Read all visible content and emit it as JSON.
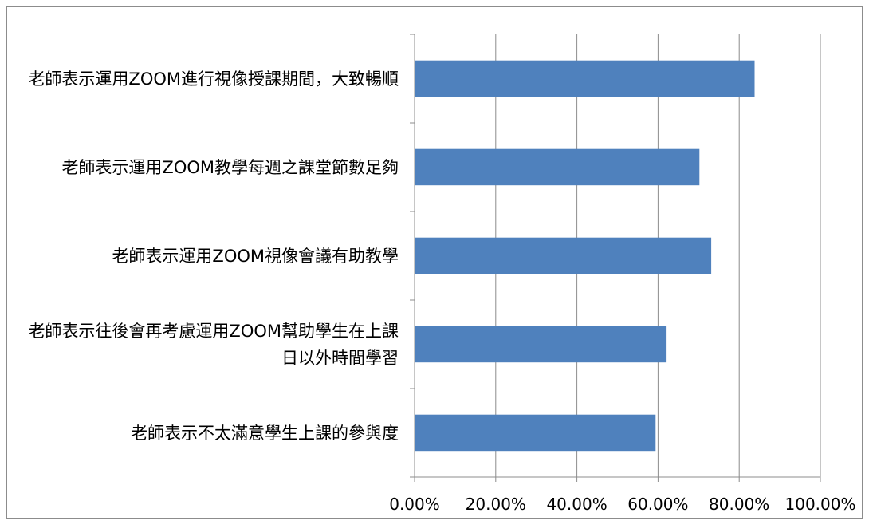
{
  "chart_data": {
    "type": "bar",
    "orientation": "horizontal",
    "categories": [
      "老師表示運用ZOOM進行視像授課期間，大致暢順",
      "老師表示運用ZOOM教學每週之課堂節數足夠",
      "老師表示運用ZOOM視像會議有助教學",
      "老師表示往後會再考慮運用ZOOM幫助學生在上課日以外時間學習",
      "老師表示不太滿意學生上課的參與度"
    ],
    "values": [
      83.8,
      70.2,
      73.1,
      62.1,
      59.4
    ],
    "unit": "%",
    "xlim": [
      0,
      100
    ],
    "x_ticks": [
      "0.00%",
      "20.00%",
      "40.00%",
      "60.00%",
      "80.00%",
      "100.00%"
    ],
    "title": "",
    "xlabel": "",
    "ylabel": "",
    "grid": "vertical major gridlines",
    "legend": "none",
    "colors": {
      "bar": "#4f81bd",
      "grid": "#8c8c8c",
      "axis": "#8c8c8c",
      "border": "#8c8c8c"
    }
  }
}
